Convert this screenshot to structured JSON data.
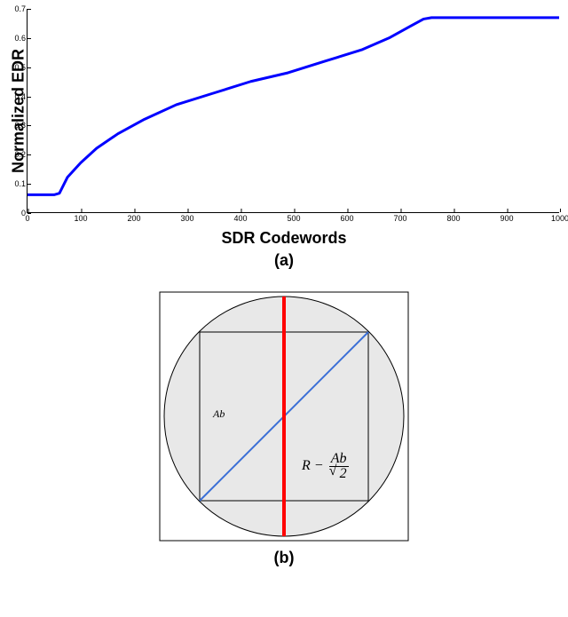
{
  "panel_a": {
    "type": "line",
    "y_label": "Normalized EDR",
    "x_label": "SDR Codewords",
    "sub_label": "(a)",
    "line_color": "#0000ff",
    "line_width": 3,
    "xlim": [
      0,
      1000
    ],
    "ylim": [
      0,
      0.7
    ],
    "x_ticks": [
      0,
      100,
      200,
      300,
      400,
      500,
      600,
      700,
      800,
      900,
      1000
    ],
    "y_ticks": [
      0,
      0.1,
      0.2,
      0.3,
      0.4,
      0.5,
      0.6,
      0.7
    ],
    "background": "#ffffff",
    "axis_color": "#000000",
    "tick_fontsize": 9,
    "label_fontsize": 18,
    "label_weight": "900",
    "data": [
      {
        "x": 0,
        "y": 0.06
      },
      {
        "x": 50,
        "y": 0.06
      },
      {
        "x": 60,
        "y": 0.065
      },
      {
        "x": 75,
        "y": 0.12
      },
      {
        "x": 100,
        "y": 0.17
      },
      {
        "x": 130,
        "y": 0.22
      },
      {
        "x": 170,
        "y": 0.27
      },
      {
        "x": 220,
        "y": 0.32
      },
      {
        "x": 280,
        "y": 0.37
      },
      {
        "x": 350,
        "y": 0.41
      },
      {
        "x": 420,
        "y": 0.45
      },
      {
        "x": 490,
        "y": 0.48
      },
      {
        "x": 560,
        "y": 0.52
      },
      {
        "x": 630,
        "y": 0.56
      },
      {
        "x": 680,
        "y": 0.6
      },
      {
        "x": 720,
        "y": 0.64
      },
      {
        "x": 745,
        "y": 0.665
      },
      {
        "x": 760,
        "y": 0.67
      },
      {
        "x": 1000,
        "y": 0.67
      }
    ]
  },
  "panel_b": {
    "type": "diagram",
    "sub_label": "(b)",
    "outer_square_size": 280,
    "circle_radius": 135,
    "inner_square_size": 190,
    "circle_fill": "#e8e8e8",
    "circle_stroke": "#000000",
    "circle_stroke_width": 1,
    "square_stroke": "#000000",
    "square_stroke_width": 1,
    "diagonal_color": "#3b6fd6",
    "diagonal_width": 2,
    "vertical_color": "#ff0000",
    "vertical_width": 4,
    "ab_label": "Ab",
    "formula_R": "R",
    "formula_num": "Ab",
    "formula_den": "2"
  }
}
